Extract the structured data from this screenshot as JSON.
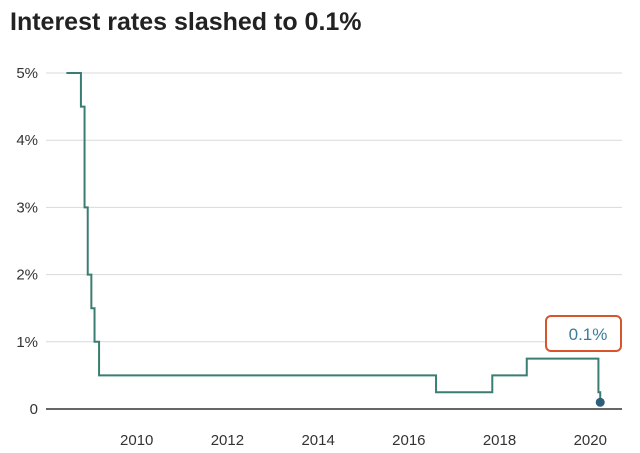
{
  "chart_data": {
    "type": "line",
    "title": "Interest rates slashed to 0.1%",
    "xlabel": "",
    "ylabel": "",
    "xlim": [
      2008.0,
      2020.7
    ],
    "ylim": [
      0,
      5
    ],
    "x_ticks": [
      2010,
      2012,
      2014,
      2016,
      2018,
      2020
    ],
    "x_tick_labels": [
      "2010",
      "2012",
      "2014",
      "2016",
      "2018",
      "2020"
    ],
    "y_ticks": [
      0,
      1,
      2,
      3,
      4,
      5
    ],
    "y_tick_labels": [
      "0",
      "1%",
      "2%",
      "3%",
      "4%",
      "5%"
    ],
    "grid": "horizontal",
    "line_style": "step",
    "series": [
      {
        "color": "#3a7d72",
        "points": [
          [
            2008.45,
            5.0
          ],
          [
            2008.77,
            4.5
          ],
          [
            2008.85,
            3.0
          ],
          [
            2008.92,
            2.0
          ],
          [
            2009.0,
            1.5
          ],
          [
            2009.07,
            1.0
          ],
          [
            2009.17,
            0.5
          ],
          [
            2016.6,
            0.25
          ],
          [
            2017.84,
            0.5
          ],
          [
            2018.6,
            0.75
          ],
          [
            2020.18,
            0.25
          ],
          [
            2020.22,
            0.1
          ]
        ]
      }
    ],
    "annotation": {
      "text": "0.1%",
      "x": 2020.22,
      "y": 0.1,
      "box_color": "#d9542b",
      "text_color": "#3a7d9a",
      "marker_color": "#2e5f7a"
    }
  }
}
